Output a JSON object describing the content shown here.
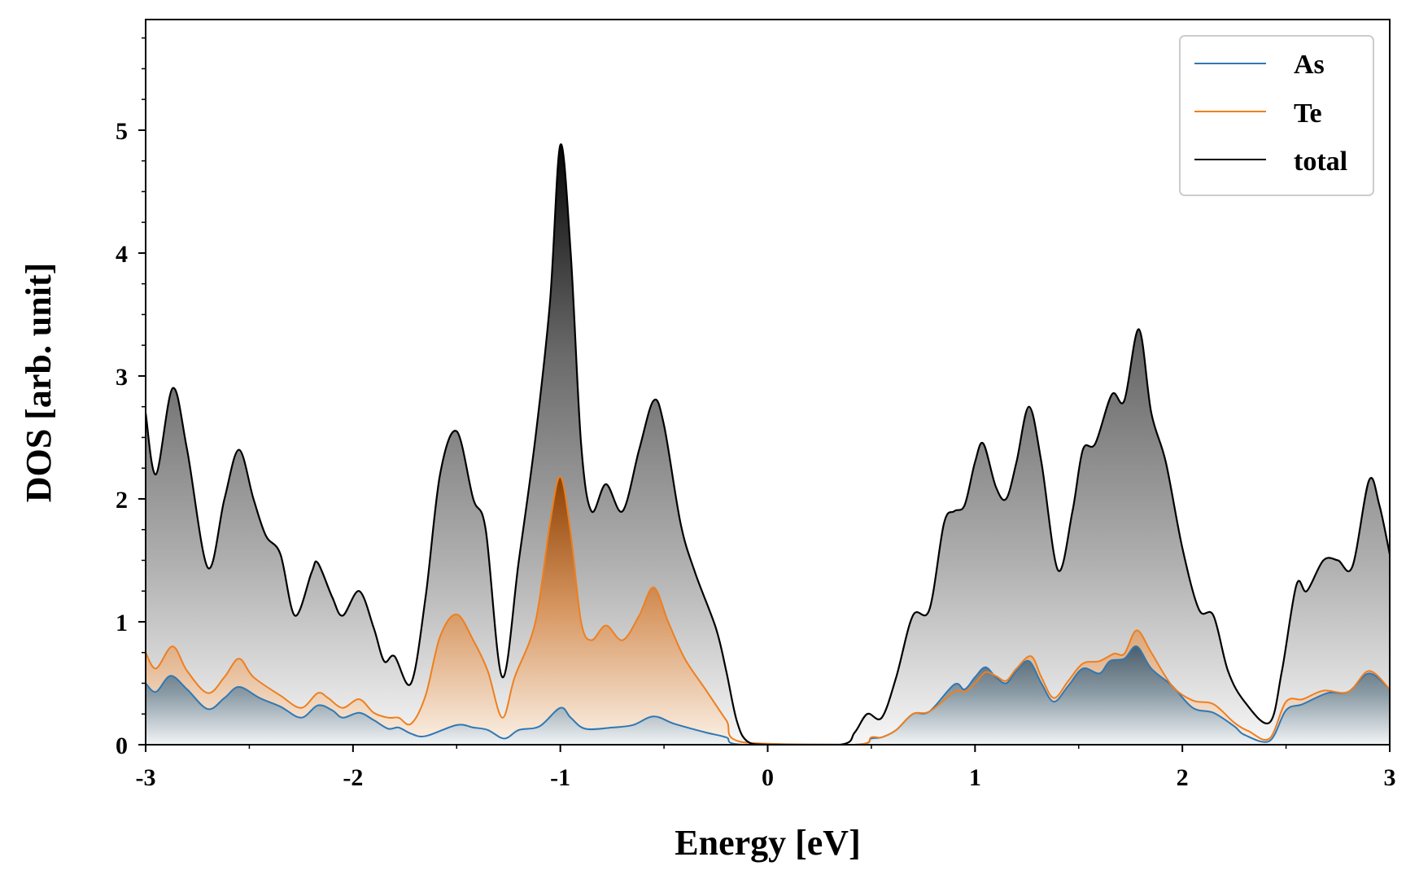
{
  "chart_data": {
    "type": "area",
    "xlabel": "Energy [eV]",
    "ylabel": "DOS [arb. unit]",
    "xlim": [
      -3,
      3
    ],
    "ylim": [
      0,
      5.9
    ],
    "x_ticks": [
      -3,
      -2,
      -1,
      0,
      1,
      2,
      3
    ],
    "x_tick_labels": [
      "-3",
      "-2",
      "-1",
      "0",
      "1",
      "2",
      "3"
    ],
    "y_ticks": [
      0,
      1,
      2,
      3,
      4,
      5
    ],
    "y_tick_labels": [
      "0",
      "1",
      "2",
      "3",
      "4",
      "5"
    ],
    "grid": false,
    "legend_position": "top-right",
    "series": [
      {
        "name": "As",
        "color": "#2f78b4",
        "points": [
          [
            -3.0,
            0.5
          ],
          [
            -2.95,
            0.43
          ],
          [
            -2.88,
            0.56
          ],
          [
            -2.8,
            0.45
          ],
          [
            -2.7,
            0.29
          ],
          [
            -2.62,
            0.38
          ],
          [
            -2.55,
            0.47
          ],
          [
            -2.45,
            0.38
          ],
          [
            -2.35,
            0.31
          ],
          [
            -2.25,
            0.22
          ],
          [
            -2.17,
            0.32
          ],
          [
            -2.1,
            0.28
          ],
          [
            -2.05,
            0.22
          ],
          [
            -1.97,
            0.26
          ],
          [
            -1.9,
            0.2
          ],
          [
            -1.83,
            0.13
          ],
          [
            -1.78,
            0.14
          ],
          [
            -1.72,
            0.09
          ],
          [
            -1.65,
            0.07
          ],
          [
            -1.5,
            0.16
          ],
          [
            -1.42,
            0.14
          ],
          [
            -1.35,
            0.12
          ],
          [
            -1.27,
            0.05
          ],
          [
            -1.2,
            0.12
          ],
          [
            -1.1,
            0.15
          ],
          [
            -1.0,
            0.3
          ],
          [
            -0.95,
            0.22
          ],
          [
            -0.88,
            0.13
          ],
          [
            -0.75,
            0.14
          ],
          [
            -0.65,
            0.16
          ],
          [
            -0.55,
            0.23
          ],
          [
            -0.45,
            0.17
          ],
          [
            -0.3,
            0.1
          ],
          [
            -0.2,
            0.06
          ],
          [
            -0.12,
            0.0
          ],
          [
            0.42,
            0.0
          ],
          [
            0.5,
            0.05
          ],
          [
            0.55,
            0.06
          ],
          [
            0.62,
            0.12
          ],
          [
            0.7,
            0.25
          ],
          [
            0.78,
            0.27
          ],
          [
            0.9,
            0.49
          ],
          [
            0.95,
            0.45
          ],
          [
            1.0,
            0.55
          ],
          [
            1.05,
            0.63
          ],
          [
            1.1,
            0.55
          ],
          [
            1.15,
            0.5
          ],
          [
            1.2,
            0.6
          ],
          [
            1.26,
            0.68
          ],
          [
            1.32,
            0.5
          ],
          [
            1.38,
            0.35
          ],
          [
            1.45,
            0.48
          ],
          [
            1.52,
            0.62
          ],
          [
            1.6,
            0.58
          ],
          [
            1.65,
            0.68
          ],
          [
            1.72,
            0.7
          ],
          [
            1.78,
            0.8
          ],
          [
            1.85,
            0.62
          ],
          [
            1.95,
            0.48
          ],
          [
            2.05,
            0.3
          ],
          [
            2.15,
            0.26
          ],
          [
            2.25,
            0.15
          ],
          [
            2.3,
            0.08
          ],
          [
            2.42,
            0.03
          ],
          [
            2.5,
            0.28
          ],
          [
            2.58,
            0.33
          ],
          [
            2.7,
            0.42
          ],
          [
            2.8,
            0.43
          ],
          [
            2.9,
            0.58
          ],
          [
            3.0,
            0.45
          ]
        ]
      },
      {
        "name": "Te",
        "color": "#ee7f1f",
        "points": [
          [
            -3.0,
            0.75
          ],
          [
            -2.95,
            0.62
          ],
          [
            -2.87,
            0.8
          ],
          [
            -2.8,
            0.6
          ],
          [
            -2.7,
            0.42
          ],
          [
            -2.62,
            0.55
          ],
          [
            -2.55,
            0.7
          ],
          [
            -2.48,
            0.55
          ],
          [
            -2.35,
            0.4
          ],
          [
            -2.25,
            0.3
          ],
          [
            -2.17,
            0.42
          ],
          [
            -2.12,
            0.38
          ],
          [
            -2.05,
            0.3
          ],
          [
            -1.97,
            0.37
          ],
          [
            -1.9,
            0.26
          ],
          [
            -1.83,
            0.22
          ],
          [
            -1.78,
            0.22
          ],
          [
            -1.72,
            0.17
          ],
          [
            -1.65,
            0.4
          ],
          [
            -1.58,
            0.88
          ],
          [
            -1.5,
            1.06
          ],
          [
            -1.42,
            0.85
          ],
          [
            -1.35,
            0.6
          ],
          [
            -1.28,
            0.22
          ],
          [
            -1.22,
            0.55
          ],
          [
            -1.12,
            1.0
          ],
          [
            -1.05,
            1.8
          ],
          [
            -1.0,
            2.18
          ],
          [
            -0.95,
            1.72
          ],
          [
            -0.9,
            1.0
          ],
          [
            -0.85,
            0.85
          ],
          [
            -0.78,
            0.97
          ],
          [
            -0.7,
            0.85
          ],
          [
            -0.62,
            1.05
          ],
          [
            -0.55,
            1.28
          ],
          [
            -0.48,
            1.0
          ],
          [
            -0.4,
            0.7
          ],
          [
            -0.3,
            0.45
          ],
          [
            -0.2,
            0.2
          ],
          [
            -0.12,
            0.02
          ],
          [
            0.42,
            0.0
          ],
          [
            0.5,
            0.06
          ],
          [
            0.55,
            0.06
          ],
          [
            0.62,
            0.12
          ],
          [
            0.7,
            0.25
          ],
          [
            0.78,
            0.27
          ],
          [
            0.9,
            0.43
          ],
          [
            0.95,
            0.43
          ],
          [
            1.0,
            0.5
          ],
          [
            1.05,
            0.59
          ],
          [
            1.1,
            0.56
          ],
          [
            1.15,
            0.52
          ],
          [
            1.2,
            0.62
          ],
          [
            1.27,
            0.72
          ],
          [
            1.32,
            0.55
          ],
          [
            1.38,
            0.38
          ],
          [
            1.45,
            0.52
          ],
          [
            1.52,
            0.66
          ],
          [
            1.6,
            0.68
          ],
          [
            1.67,
            0.74
          ],
          [
            1.72,
            0.74
          ],
          [
            1.78,
            0.93
          ],
          [
            1.85,
            0.75
          ],
          [
            1.95,
            0.48
          ],
          [
            2.05,
            0.36
          ],
          [
            2.15,
            0.33
          ],
          [
            2.25,
            0.18
          ],
          [
            2.32,
            0.11
          ],
          [
            2.42,
            0.05
          ],
          [
            2.5,
            0.35
          ],
          [
            2.58,
            0.37
          ],
          [
            2.68,
            0.44
          ],
          [
            2.8,
            0.43
          ],
          [
            2.9,
            0.6
          ],
          [
            3.0,
            0.45
          ]
        ]
      },
      {
        "name": "total",
        "color": "#000000",
        "points": [
          [
            -3.0,
            2.7
          ],
          [
            -2.95,
            2.2
          ],
          [
            -2.87,
            2.9
          ],
          [
            -2.8,
            2.4
          ],
          [
            -2.7,
            1.44
          ],
          [
            -2.62,
            2.0
          ],
          [
            -2.55,
            2.4
          ],
          [
            -2.48,
            2.0
          ],
          [
            -2.42,
            1.7
          ],
          [
            -2.35,
            1.55
          ],
          [
            -2.28,
            1.05
          ],
          [
            -2.2,
            1.4
          ],
          [
            -2.17,
            1.48
          ],
          [
            -2.1,
            1.2
          ],
          [
            -2.05,
            1.05
          ],
          [
            -1.97,
            1.25
          ],
          [
            -1.9,
            0.95
          ],
          [
            -1.85,
            0.68
          ],
          [
            -1.8,
            0.72
          ],
          [
            -1.72,
            0.5
          ],
          [
            -1.65,
            1.2
          ],
          [
            -1.58,
            2.2
          ],
          [
            -1.5,
            2.55
          ],
          [
            -1.42,
            2.0
          ],
          [
            -1.36,
            1.75
          ],
          [
            -1.28,
            0.55
          ],
          [
            -1.2,
            1.5
          ],
          [
            -1.12,
            2.5
          ],
          [
            -1.05,
            3.6
          ],
          [
            -1.0,
            4.88
          ],
          [
            -0.95,
            4.0
          ],
          [
            -0.9,
            2.45
          ],
          [
            -0.85,
            1.9
          ],
          [
            -0.78,
            2.12
          ],
          [
            -0.7,
            1.9
          ],
          [
            -0.62,
            2.4
          ],
          [
            -0.55,
            2.8
          ],
          [
            -0.5,
            2.6
          ],
          [
            -0.42,
            1.8
          ],
          [
            -0.35,
            1.4
          ],
          [
            -0.25,
            0.95
          ],
          [
            -0.2,
            0.6
          ],
          [
            -0.15,
            0.2
          ],
          [
            -0.1,
            0.03
          ],
          [
            0.0,
            0.0
          ],
          [
            0.35,
            0.0
          ],
          [
            0.42,
            0.1
          ],
          [
            0.48,
            0.25
          ],
          [
            0.55,
            0.22
          ],
          [
            0.62,
            0.55
          ],
          [
            0.7,
            1.05
          ],
          [
            0.78,
            1.1
          ],
          [
            0.85,
            1.8
          ],
          [
            0.9,
            1.9
          ],
          [
            0.95,
            1.95
          ],
          [
            1.0,
            2.3
          ],
          [
            1.04,
            2.45
          ],
          [
            1.1,
            2.1
          ],
          [
            1.15,
            2.0
          ],
          [
            1.2,
            2.3
          ],
          [
            1.26,
            2.75
          ],
          [
            1.32,
            2.3
          ],
          [
            1.4,
            1.42
          ],
          [
            1.47,
            1.9
          ],
          [
            1.52,
            2.4
          ],
          [
            1.58,
            2.45
          ],
          [
            1.66,
            2.85
          ],
          [
            1.72,
            2.8
          ],
          [
            1.79,
            3.38
          ],
          [
            1.85,
            2.7
          ],
          [
            1.92,
            2.3
          ],
          [
            2.0,
            1.6
          ],
          [
            2.08,
            1.1
          ],
          [
            2.15,
            1.05
          ],
          [
            2.22,
            0.6
          ],
          [
            2.3,
            0.35
          ],
          [
            2.42,
            0.18
          ],
          [
            2.48,
            0.6
          ],
          [
            2.55,
            1.3
          ],
          [
            2.6,
            1.25
          ],
          [
            2.68,
            1.5
          ],
          [
            2.75,
            1.5
          ],
          [
            2.82,
            1.45
          ],
          [
            2.9,
            2.15
          ],
          [
            2.95,
            1.95
          ],
          [
            3.0,
            1.55
          ]
        ]
      }
    ]
  }
}
